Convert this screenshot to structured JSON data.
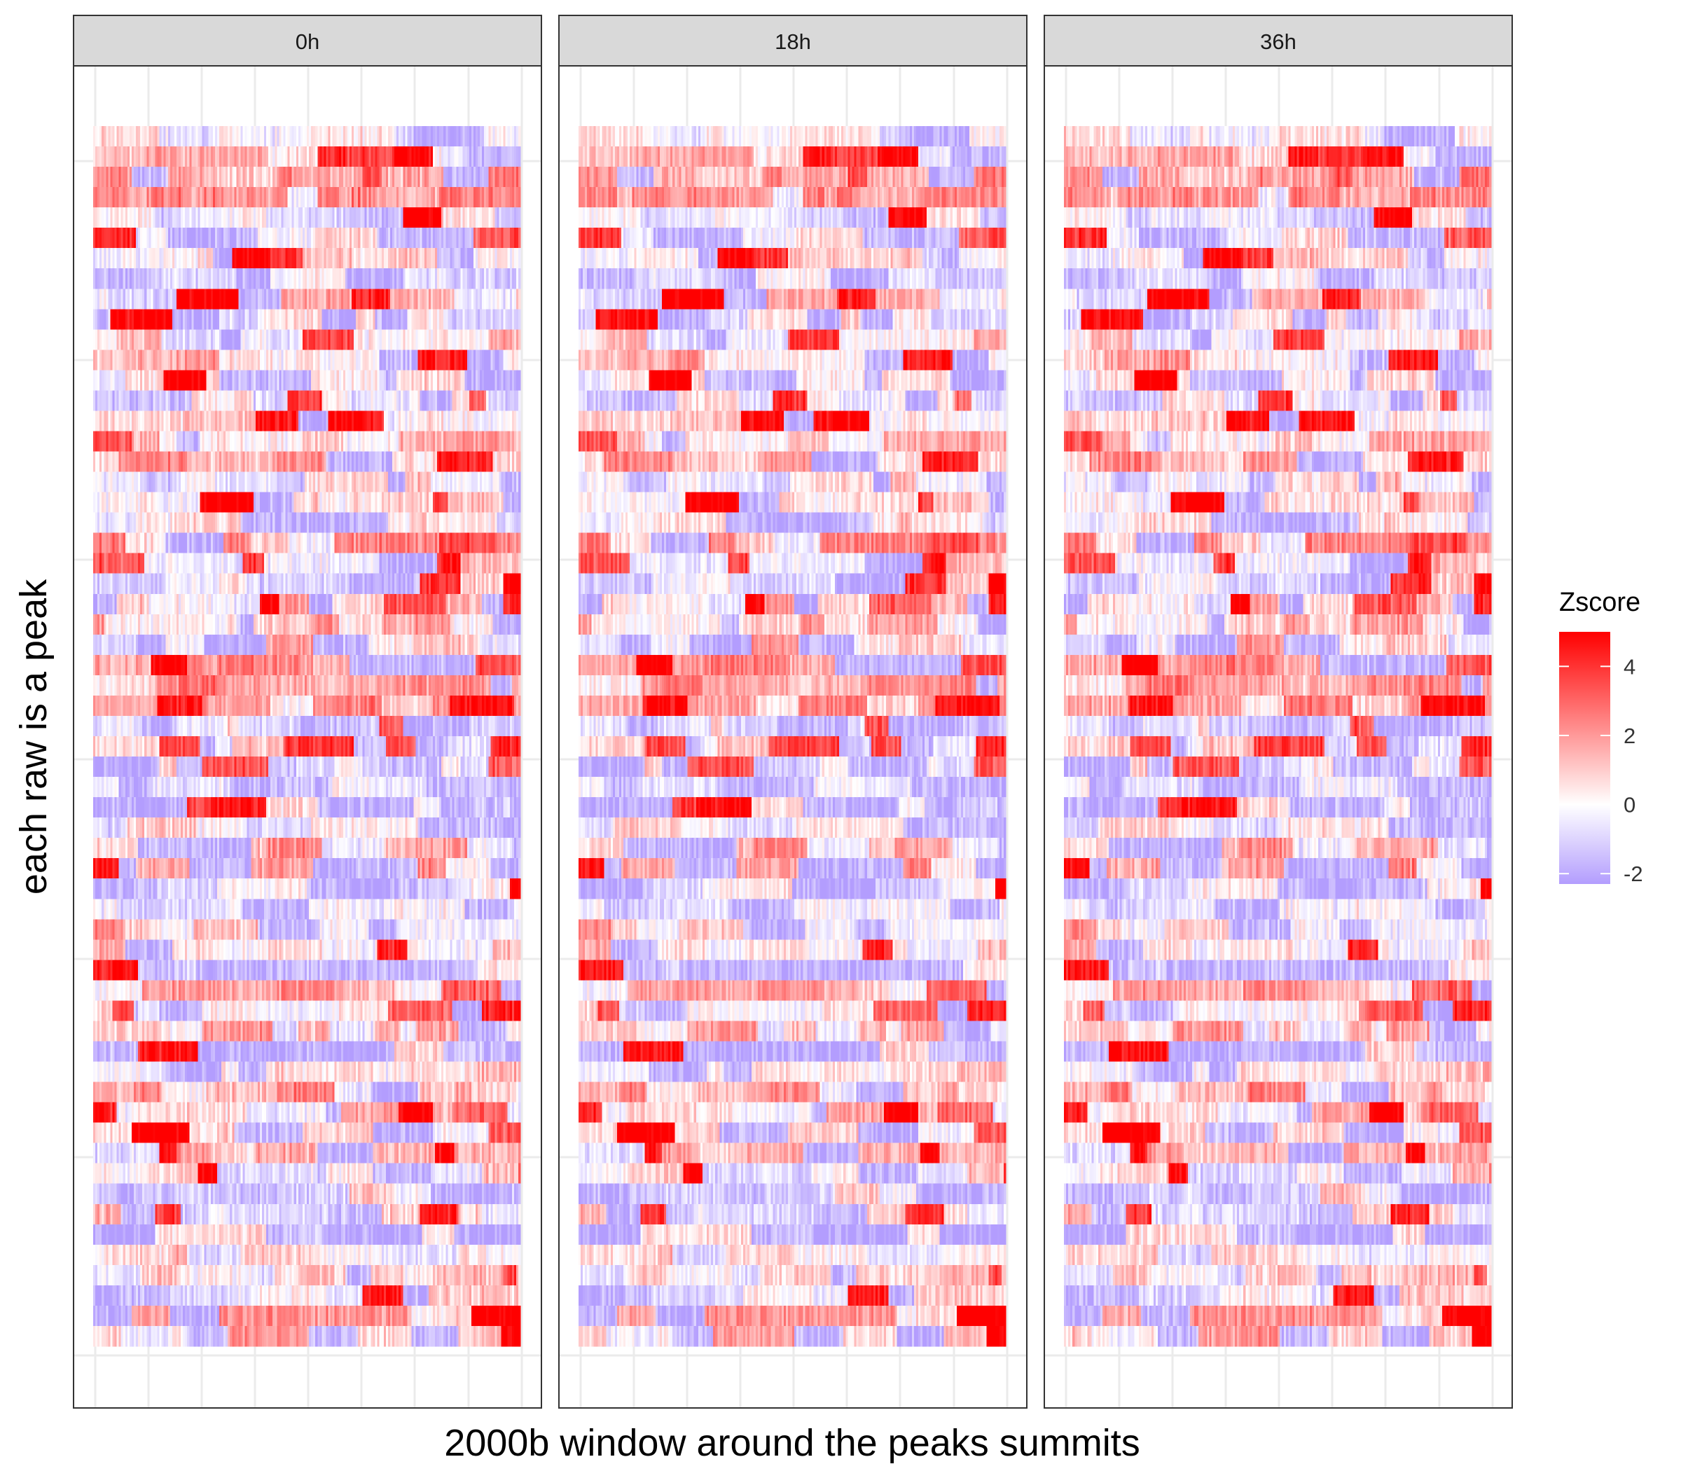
{
  "chart_data": {
    "type": "heatmap",
    "facets": [
      "0h",
      "18h",
      "36h"
    ],
    "xlabel": "2000b window around the peaks summits",
    "ylabel": "each raw is a peak",
    "legend": {
      "title": "Zscore",
      "position": "right",
      "ticks": [
        4,
        2,
        0,
        -2
      ],
      "range": [
        -2.3,
        5
      ]
    },
    "colors": {
      "low": "#b39dfe",
      "mid": "#ffffff",
      "high": "#ff0000"
    },
    "rows": 60,
    "columns": 200,
    "x_axis_tick_labels": [],
    "y_axis_tick_labels": [],
    "grid": true,
    "theme": "bw"
  }
}
